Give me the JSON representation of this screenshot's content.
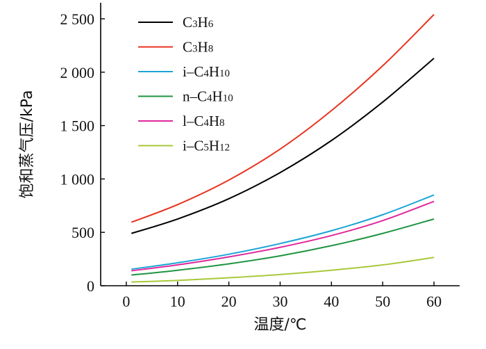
{
  "chart_data": {
    "type": "line",
    "xlabel": "温度/℃",
    "ylabel": "饱和蒸气压/kPa",
    "xlim": [
      -5,
      65
    ],
    "ylim": [
      0,
      2650
    ],
    "x_ticks": [
      0,
      10,
      20,
      30,
      40,
      50,
      60
    ],
    "y_ticks": [
      0,
      500,
      1000,
      1500,
      2000,
      2500
    ],
    "y_tick_labels": [
      "0",
      "500",
      "1 000",
      "1 500",
      "2 000",
      "2 500"
    ],
    "grid": false,
    "legend_position": "top-left",
    "series": [
      {
        "name": "C3H6",
        "label_parts": [
          [
            "C",
            ""
          ],
          [
            "3",
            "sub"
          ],
          [
            "H",
            ""
          ],
          [
            "6",
            "sub"
          ]
        ],
        "color": "#000000",
        "x": [
          1,
          10,
          20,
          30,
          40,
          50,
          60
        ],
        "values": [
          490,
          625,
          815,
          1060,
          1360,
          1720,
          2130
        ]
      },
      {
        "name": "C3H8",
        "label_parts": [
          [
            "C",
            ""
          ],
          [
            "3",
            "sub"
          ],
          [
            "H",
            ""
          ],
          [
            "8",
            "sub"
          ]
        ],
        "color": "#e8321e",
        "x": [
          1,
          10,
          20,
          30,
          40,
          50,
          60
        ],
        "values": [
          595,
          760,
          990,
          1280,
          1640,
          2060,
          2540
        ]
      },
      {
        "name": "i-C4H10",
        "label_parts": [
          [
            "i–C",
            ""
          ],
          [
            "4",
            "sub"
          ],
          [
            "H",
            ""
          ],
          [
            "10",
            "sub"
          ]
        ],
        "color": "#1aa3d6",
        "x": [
          1,
          10,
          20,
          30,
          40,
          50,
          60
        ],
        "values": [
          155,
          215,
          295,
          395,
          515,
          665,
          850
        ]
      },
      {
        "name": "n-C4H10",
        "label_parts": [
          [
            "n–C",
            ""
          ],
          [
            "4",
            "sub"
          ],
          [
            "H",
            ""
          ],
          [
            "10",
            "sub"
          ]
        ],
        "color": "#1e9440",
        "x": [
          1,
          10,
          20,
          30,
          40,
          50,
          60
        ],
        "values": [
          100,
          145,
          205,
          280,
          375,
          490,
          625
        ]
      },
      {
        "name": "l-C4H8",
        "label_parts": [
          [
            "l–C",
            ""
          ],
          [
            "4",
            "sub"
          ],
          [
            "H",
            ""
          ],
          [
            "8",
            "sub"
          ]
        ],
        "color": "#e0289b",
        "x": [
          1,
          10,
          20,
          30,
          40,
          50,
          60
        ],
        "values": [
          140,
          195,
          270,
          360,
          470,
          610,
          790
        ]
      },
      {
        "name": "i-C5H12",
        "label_parts": [
          [
            "i–C",
            ""
          ],
          [
            "5",
            "sub"
          ],
          [
            "H",
            ""
          ],
          [
            "12",
            "sub"
          ]
        ],
        "color": "#a8c83a",
        "x": [
          1,
          10,
          20,
          30,
          40,
          50,
          60
        ],
        "values": [
          35,
          50,
          75,
          105,
          145,
          195,
          265
        ]
      }
    ]
  }
}
